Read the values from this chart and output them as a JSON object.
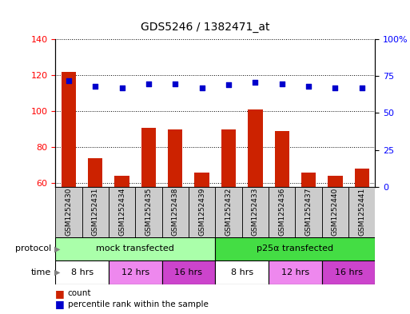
{
  "title": "GDS5246 / 1382471_at",
  "samples": [
    "GSM1252430",
    "GSM1252431",
    "GSM1252434",
    "GSM1252435",
    "GSM1252438",
    "GSM1252439",
    "GSM1252432",
    "GSM1252433",
    "GSM1252436",
    "GSM1252437",
    "GSM1252440",
    "GSM1252441"
  ],
  "counts": [
    122,
    74,
    64,
    91,
    90,
    66,
    90,
    101,
    89,
    66,
    64,
    68
  ],
  "percentiles": [
    72,
    68,
    67,
    70,
    70,
    67,
    69,
    71,
    70,
    68,
    67,
    67
  ],
  "ylim_left": [
    58,
    140
  ],
  "ylim_right": [
    0,
    100
  ],
  "yticks_left": [
    60,
    80,
    100,
    120,
    140
  ],
  "yticks_right": [
    0,
    25,
    50,
    75,
    100
  ],
  "ytick_labels_right": [
    "0",
    "25",
    "50",
    "75",
    "100%"
  ],
  "bar_color": "#cc2200",
  "dot_color": "#0000cc",
  "protocol_groups": [
    {
      "label": "mock transfected",
      "start": 0,
      "end": 6,
      "color": "#aaffaa"
    },
    {
      "label": "p25α transfected",
      "start": 6,
      "end": 12,
      "color": "#44dd44"
    }
  ],
  "time_groups": [
    {
      "label": "8 hrs",
      "start": 0,
      "end": 2,
      "color": "#ffffff"
    },
    {
      "label": "12 hrs",
      "start": 2,
      "end": 4,
      "color": "#ee88ee"
    },
    {
      "label": "16 hrs",
      "start": 4,
      "end": 6,
      "color": "#cc44cc"
    },
    {
      "label": "8 hrs",
      "start": 6,
      "end": 8,
      "color": "#ffffff"
    },
    {
      "label": "12 hrs",
      "start": 8,
      "end": 10,
      "color": "#ee88ee"
    },
    {
      "label": "16 hrs",
      "start": 10,
      "end": 12,
      "color": "#cc44cc"
    }
  ],
  "legend_items": [
    {
      "label": "count",
      "color": "#cc2200"
    },
    {
      "label": "percentile rank within the sample",
      "color": "#0000cc"
    }
  ],
  "sample_box_color": "#cccccc",
  "title_fontsize": 10,
  "tick_fontsize": 8,
  "sample_fontsize": 6.5,
  "row_label_fontsize": 8,
  "row_text_fontsize": 8
}
